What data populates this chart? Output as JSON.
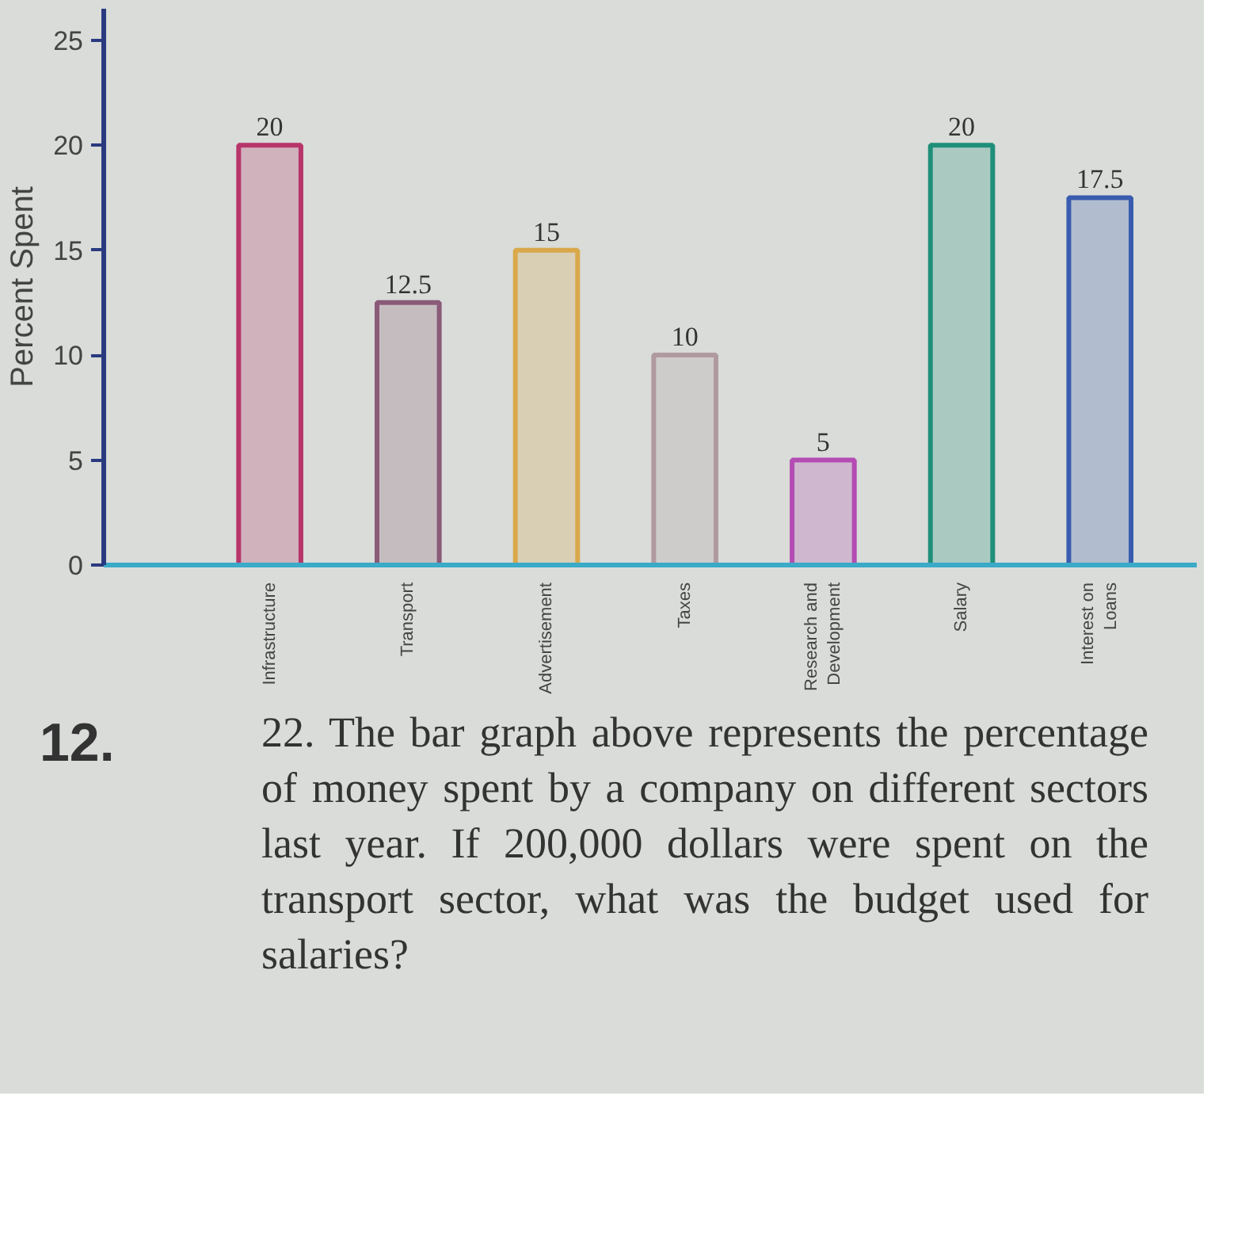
{
  "chart_data": {
    "type": "bar",
    "ylabel": "Percent Spent",
    "categories": [
      "Infrastructure",
      "Transport",
      "Advertisement",
      "Taxes",
      "Research and\nDevelopment",
      "Salary",
      "Interest on\nLoans"
    ],
    "values": [
      20,
      12.5,
      15,
      10,
      5,
      20,
      17.5
    ],
    "colors": [
      "#b8356a",
      "#8a5a78",
      "#d9a84a",
      "#b09aa0",
      "#b44cb4",
      "#1f8f7a",
      "#3a5cb0"
    ],
    "ylim": [
      0,
      26.5
    ],
    "yticks": [
      0,
      5,
      10,
      15,
      20,
      25
    ],
    "data_labels": true,
    "grid": false,
    "annotations": [
      "12.",
      "22. The bar graph above represents the percentage of money spent by a company on different sectors last year. If 200,000 dollars were spent on the transport sector, what was the budget used for salaries?"
    ]
  }
}
